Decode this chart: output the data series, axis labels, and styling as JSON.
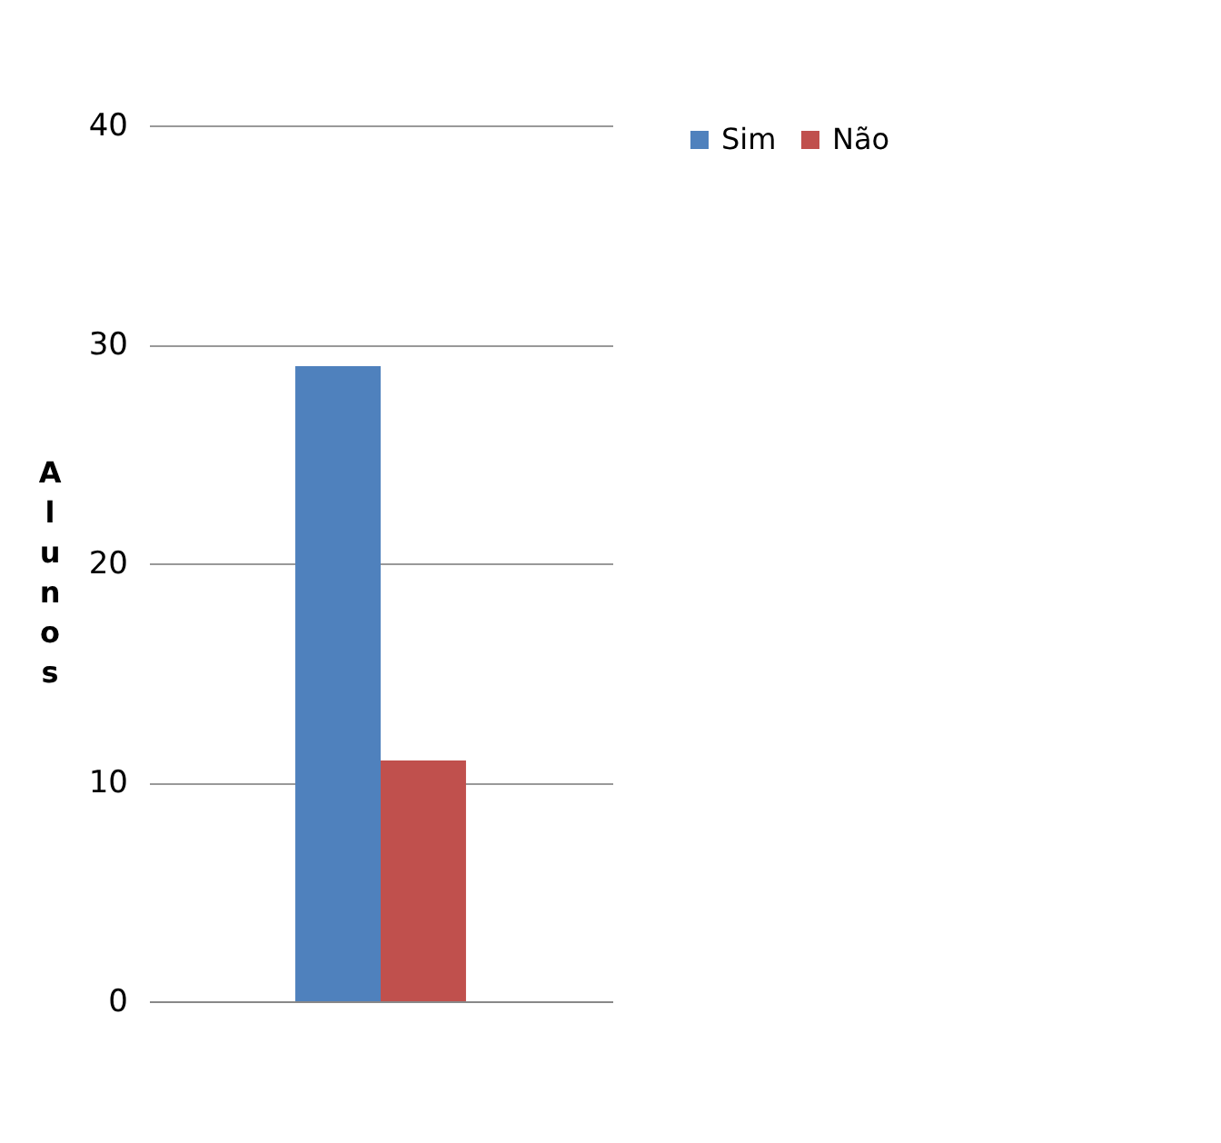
{
  "chart_data": {
    "type": "bar",
    "ylabel": "Alunos",
    "categories": [
      null
    ],
    "series": [
      {
        "name": "Sim",
        "color": "#4f81bd",
        "values": [
          29
        ]
      },
      {
        "name": "Não",
        "color": "#c0504d",
        "values": [
          11
        ]
      }
    ],
    "ylim": [
      0,
      40
    ],
    "yticks": [
      0,
      10,
      20,
      30,
      40
    ],
    "grid": "y",
    "legend": "right"
  }
}
